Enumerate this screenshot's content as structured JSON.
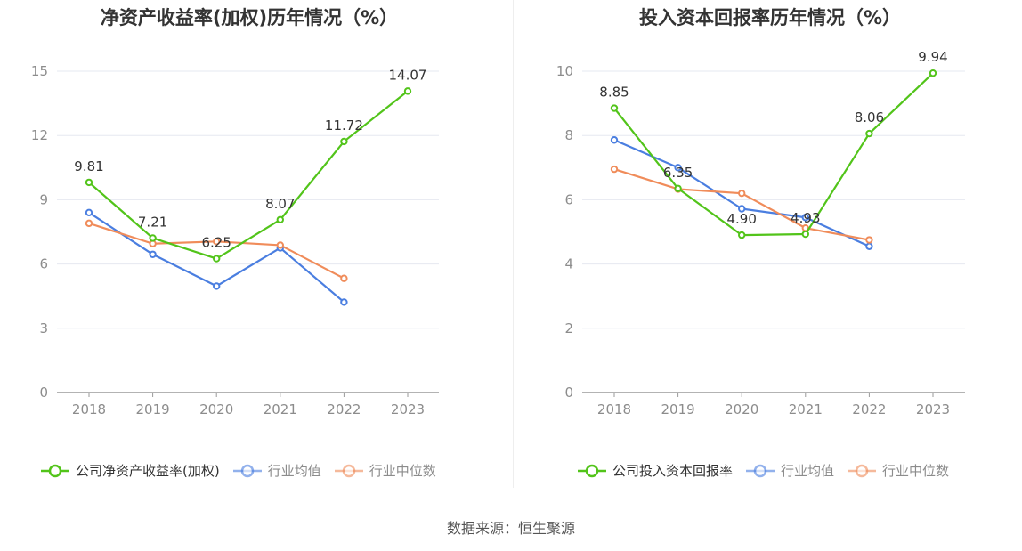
{
  "source": "数据来源：恒生聚源",
  "chart_data": [
    {
      "type": "line",
      "title": "净资产收益率(加权)历年情况（%）",
      "categories": [
        "2018",
        "2019",
        "2020",
        "2021",
        "2022",
        "2023"
      ],
      "ylim": [
        0,
        15
      ],
      "yticks": [
        0,
        3,
        6,
        9,
        12,
        15
      ],
      "grid": true,
      "legend_position": "bottom",
      "series": [
        {
          "name": "公司净资产收益率(加权)",
          "color": "#52c41a",
          "labeled": true,
          "values": [
            9.81,
            7.21,
            6.25,
            8.07,
            11.72,
            14.07
          ],
          "labels": [
            "9.81",
            "7.21",
            "6.25",
            "8.07",
            "11.72",
            "14.07"
          ]
        },
        {
          "name": "行业均值",
          "color": "#4a7ee0",
          "labeled": false,
          "values": [
            8.4,
            6.45,
            4.97,
            6.75,
            4.22,
            null
          ]
        },
        {
          "name": "行业中位数",
          "color": "#f08c5a",
          "labeled": false,
          "values": [
            7.9,
            6.95,
            7.05,
            6.88,
            5.33,
            null
          ]
        }
      ]
    },
    {
      "type": "line",
      "title": "投入资本回报率历年情况（%）",
      "categories": [
        "2018",
        "2019",
        "2020",
        "2021",
        "2022",
        "2023"
      ],
      "ylim": [
        0,
        10
      ],
      "yticks": [
        0,
        2,
        4,
        6,
        8,
        10
      ],
      "grid": true,
      "legend_position": "bottom",
      "series": [
        {
          "name": "公司投入资本回报率",
          "color": "#52c41a",
          "labeled": true,
          "values": [
            8.85,
            6.35,
            4.9,
            4.93,
            8.06,
            9.94
          ],
          "labels": [
            "8.85",
            "6.35",
            "4.90",
            "4.93",
            "8.06",
            "9.94"
          ]
        },
        {
          "name": "行业均值",
          "color": "#4a7ee0",
          "labeled": false,
          "values": [
            7.86,
            7.0,
            5.72,
            5.45,
            4.55,
            null
          ]
        },
        {
          "name": "行业中位数",
          "color": "#f08c5a",
          "labeled": false,
          "values": [
            6.95,
            6.33,
            6.2,
            5.12,
            4.75,
            null
          ]
        }
      ]
    }
  ]
}
